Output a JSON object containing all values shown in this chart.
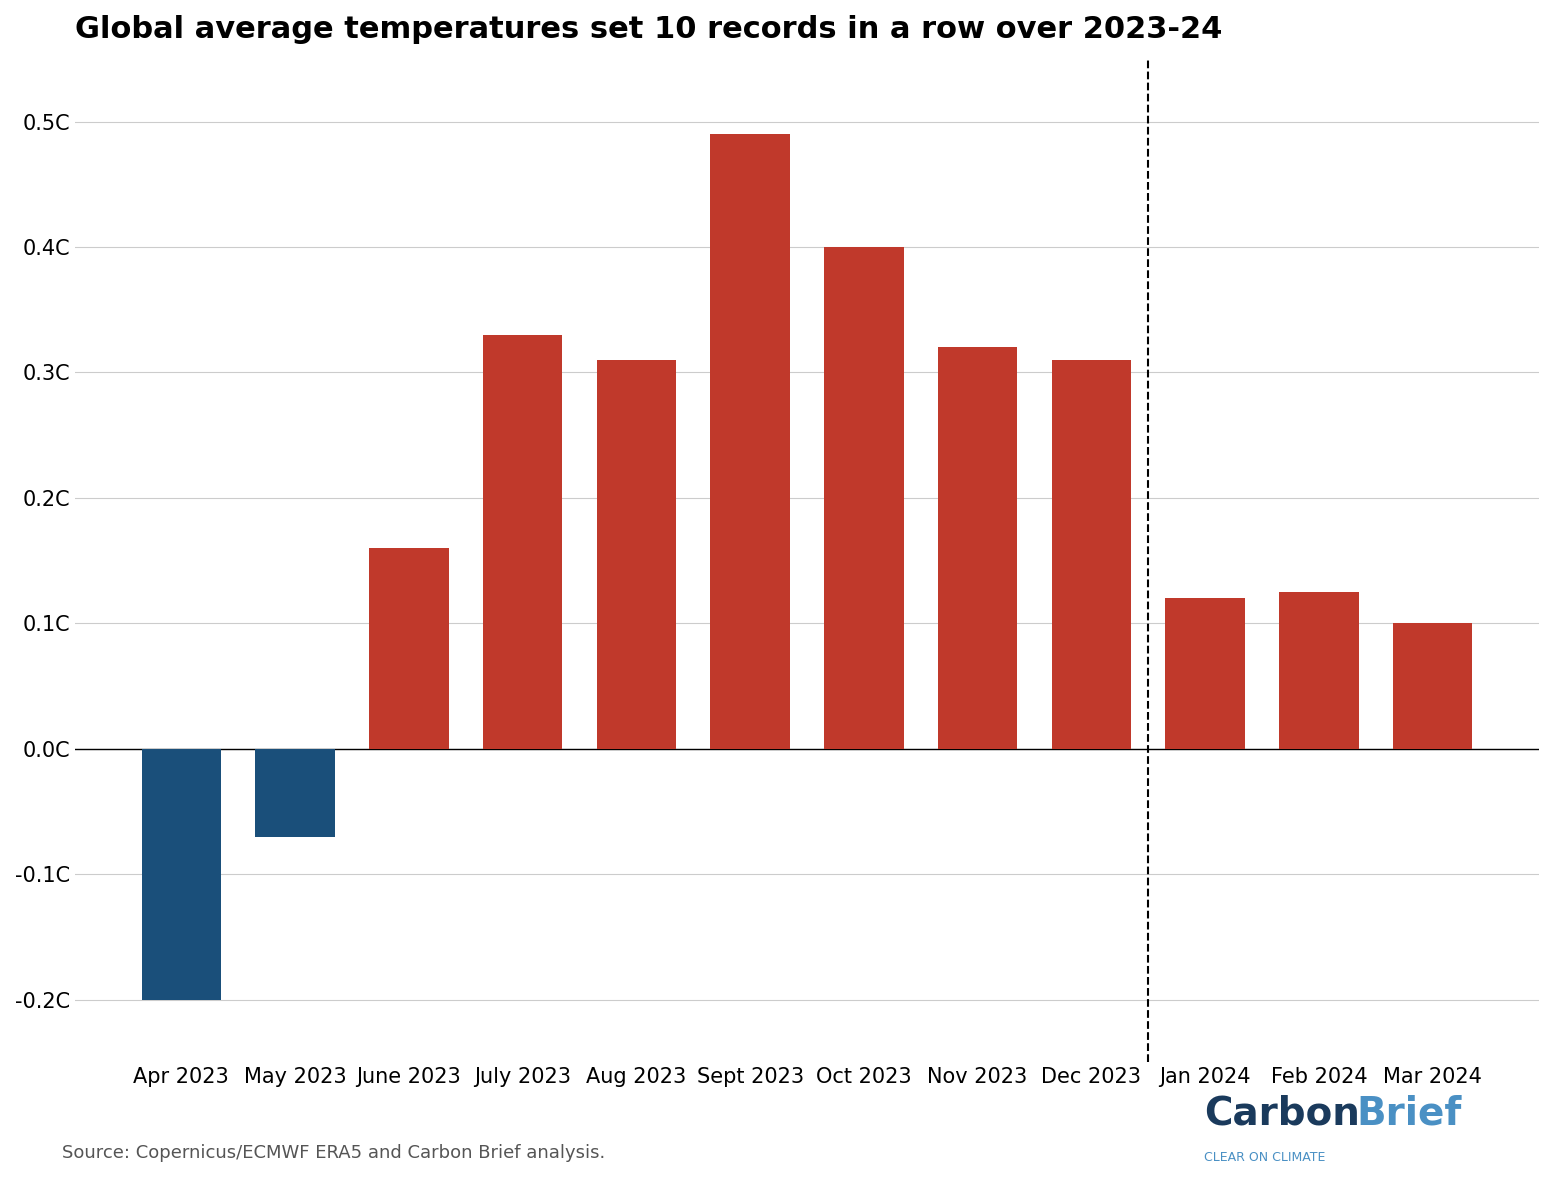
{
  "title": "Global average temperatures set 10 records in a row over 2023-24",
  "categories": [
    "Apr 2023",
    "May 2023",
    "June 2023",
    "July 2023",
    "Aug 2023",
    "Sept 2023",
    "Oct 2023",
    "Nov 2023",
    "Dec 2023",
    "Jan 2024",
    "Feb 2024",
    "Mar 2024"
  ],
  "values": [
    -0.2,
    -0.07,
    0.16,
    0.33,
    0.31,
    0.49,
    0.4,
    0.32,
    0.31,
    0.12,
    0.125,
    0.1
  ],
  "dashed_line_x": 8.5,
  "ylim": [
    -0.25,
    0.55
  ],
  "yticks": [
    -0.2,
    -0.1,
    0.0,
    0.1,
    0.2,
    0.3,
    0.4,
    0.5
  ],
  "ytick_labels": [
    "-0.2C",
    "-0.1C",
    "0.0C",
    "0.1C",
    "0.2C",
    "0.3C",
    "0.4C",
    "0.5C"
  ],
  "source_text": "Source: Copernicus/ECMWF ERA5 and Carbon Brief analysis.",
  "background_color": "#ffffff",
  "grid_color": "#cccccc",
  "bar_positive_color": "#c0392b",
  "bar_negative_color": "#1a4f7a",
  "title_fontsize": 22,
  "axis_fontsize": 15,
  "source_fontsize": 13,
  "logo_carbon_color": "#1a3a5c",
  "logo_brief_color": "#4a90c4",
  "logo_tagline_color": "#4a90c4"
}
